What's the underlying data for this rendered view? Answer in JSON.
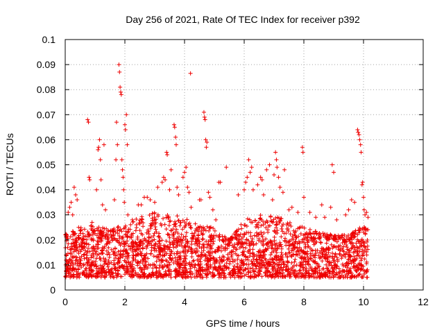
{
  "chart_data": {
    "type": "scatter",
    "title": "Day 256 of 2021, Rate Of TEC Index for receiver p392",
    "xlabel": "GPS time / hours",
    "ylabel": "ROTI / TECUs",
    "xlim": [
      0,
      12
    ],
    "ylim": [
      0,
      0.1
    ],
    "xticks": [
      0,
      2,
      4,
      6,
      8,
      10,
      12
    ],
    "xtick_labels": [
      "0",
      "2",
      "4",
      "6",
      "8",
      "10",
      "12"
    ],
    "yticks": [
      0,
      0.01,
      0.02,
      0.03,
      0.04,
      0.05,
      0.06,
      0.07,
      0.08,
      0.09,
      0.1
    ],
    "ytick_labels": [
      "0",
      "0.01",
      "0.02",
      "0.03",
      "0.04",
      "0.05",
      "0.06",
      "0.07",
      "0.08",
      "0.09",
      "0.1"
    ],
    "grid": true,
    "marker": "+",
    "color": "#ee0000",
    "series": [
      {
        "name": "ROTI",
        "points": [
          [
            0.05,
            0.022
          ],
          [
            0.1,
            0.031
          ],
          [
            0.15,
            0.033
          ],
          [
            0.2,
            0.035
          ],
          [
            0.25,
            0.03
          ],
          [
            0.3,
            0.041
          ],
          [
            0.35,
            0.038
          ],
          [
            0.4,
            0.036
          ],
          [
            0.45,
            0.025
          ],
          [
            0.75,
            0.068
          ],
          [
            0.78,
            0.067
          ],
          [
            0.8,
            0.045
          ],
          [
            0.82,
            0.044
          ],
          [
            0.9,
            0.027
          ],
          [
            1.05,
            0.04
          ],
          [
            1.1,
            0.056
          ],
          [
            1.12,
            0.057
          ],
          [
            1.15,
            0.06
          ],
          [
            1.18,
            0.052
          ],
          [
            1.2,
            0.044
          ],
          [
            1.25,
            0.034
          ],
          [
            1.3,
            0.058
          ],
          [
            1.35,
            0.032
          ],
          [
            1.55,
            0.021
          ],
          [
            1.65,
            0.036
          ],
          [
            1.7,
            0.052
          ],
          [
            1.72,
            0.067
          ],
          [
            1.75,
            0.058
          ],
          [
            1.8,
            0.09
          ],
          [
            1.82,
            0.087
          ],
          [
            1.84,
            0.081
          ],
          [
            1.86,
            0.079
          ],
          [
            1.88,
            0.078
          ],
          [
            1.9,
            0.052
          ],
          [
            1.92,
            0.048
          ],
          [
            1.94,
            0.045
          ],
          [
            1.96,
            0.04
          ],
          [
            1.98,
            0.035
          ],
          [
            2.0,
            0.066
          ],
          [
            2.02,
            0.064
          ],
          [
            2.05,
            0.07
          ],
          [
            2.08,
            0.058
          ],
          [
            2.1,
            0.03
          ],
          [
            2.25,
            0.028
          ],
          [
            2.45,
            0.034
          ],
          [
            2.55,
            0.034
          ],
          [
            2.65,
            0.037
          ],
          [
            2.75,
            0.037
          ],
          [
            2.85,
            0.036
          ],
          [
            3.0,
            0.035
          ],
          [
            3.1,
            0.041
          ],
          [
            3.25,
            0.043
          ],
          [
            3.3,
            0.045
          ],
          [
            3.35,
            0.044
          ],
          [
            3.4,
            0.055
          ],
          [
            3.42,
            0.054
          ],
          [
            3.5,
            0.04
          ],
          [
            3.55,
            0.048
          ],
          [
            3.65,
            0.066
          ],
          [
            3.67,
            0.065
          ],
          [
            3.7,
            0.061
          ],
          [
            3.72,
            0.058
          ],
          [
            3.75,
            0.041
          ],
          [
            3.8,
            0.038
          ],
          [
            3.95,
            0.045
          ],
          [
            4.0,
            0.047
          ],
          [
            4.05,
            0.049
          ],
          [
            4.1,
            0.041
          ],
          [
            4.15,
            0.039
          ],
          [
            4.2,
            0.0865
          ],
          [
            4.22,
            0.033
          ],
          [
            4.45,
            0.025
          ],
          [
            4.5,
            0.036
          ],
          [
            4.55,
            0.036
          ],
          [
            4.65,
            0.071
          ],
          [
            4.67,
            0.069
          ],
          [
            4.69,
            0.068
          ],
          [
            4.71,
            0.06
          ],
          [
            4.73,
            0.057
          ],
          [
            4.75,
            0.059
          ],
          [
            4.8,
            0.039
          ],
          [
            4.85,
            0.037
          ],
          [
            4.95,
            0.032
          ],
          [
            5.05,
            0.028
          ],
          [
            5.15,
            0.043
          ],
          [
            5.2,
            0.043
          ],
          [
            5.4,
            0.049
          ],
          [
            5.6,
            0.021
          ],
          [
            5.7,
            0.021
          ],
          [
            5.8,
            0.038
          ],
          [
            6.0,
            0.04
          ],
          [
            6.05,
            0.043
          ],
          [
            6.1,
            0.045
          ],
          [
            6.15,
            0.052
          ],
          [
            6.2,
            0.047
          ],
          [
            6.25,
            0.049
          ],
          [
            6.3,
            0.04
          ],
          [
            6.45,
            0.042
          ],
          [
            6.55,
            0.045
          ],
          [
            6.6,
            0.044
          ],
          [
            6.65,
            0.038
          ],
          [
            6.75,
            0.048
          ],
          [
            6.85,
            0.05
          ],
          [
            6.95,
            0.036
          ],
          [
            7.0,
            0.046
          ],
          [
            7.05,
            0.055
          ],
          [
            7.08,
            0.052
          ],
          [
            7.1,
            0.049
          ],
          [
            7.15,
            0.045
          ],
          [
            7.2,
            0.041
          ],
          [
            7.3,
            0.039
          ],
          [
            7.35,
            0.048
          ],
          [
            7.5,
            0.032
          ],
          [
            7.6,
            0.033
          ],
          [
            7.8,
            0.031
          ],
          [
            7.95,
            0.057
          ],
          [
            7.97,
            0.055
          ],
          [
            8.0,
            0.037
          ],
          [
            8.2,
            0.031
          ],
          [
            8.4,
            0.029
          ],
          [
            8.6,
            0.034
          ],
          [
            8.7,
            0.029
          ],
          [
            8.9,
            0.033
          ],
          [
            8.95,
            0.05
          ],
          [
            9.0,
            0.047
          ],
          [
            9.1,
            0.028
          ],
          [
            9.4,
            0.03
          ],
          [
            9.5,
            0.032
          ],
          [
            9.6,
            0.036
          ],
          [
            9.7,
            0.035
          ],
          [
            9.8,
            0.064
          ],
          [
            9.82,
            0.063
          ],
          [
            9.85,
            0.062
          ],
          [
            9.87,
            0.06
          ],
          [
            9.9,
            0.058
          ],
          [
            9.92,
            0.055
          ],
          [
            9.95,
            0.042
          ],
          [
            9.97,
            0.043
          ],
          [
            10.0,
            0.037
          ],
          [
            10.02,
            0.032
          ],
          [
            10.05,
            0.03
          ],
          [
            10.1,
            0.031
          ],
          [
            10.15,
            0.029
          ]
        ],
        "dense_band": {
          "x_range": [
            0.0,
            10.15
          ],
          "typical_range": [
            0.005,
            0.02
          ],
          "upper_envelope": [
            [
              0,
              0.023
            ],
            [
              0.5,
              0.025
            ],
            [
              1,
              0.026
            ],
            [
              1.5,
              0.024
            ],
            [
              2,
              0.027
            ],
            [
              2.5,
              0.029
            ],
            [
              3,
              0.031
            ],
            [
              3.5,
              0.031
            ],
            [
              4,
              0.029
            ],
            [
              4.5,
              0.026
            ],
            [
              5,
              0.025
            ],
            [
              5.5,
              0.02
            ],
            [
              6,
              0.028
            ],
            [
              6.5,
              0.03
            ],
            [
              7,
              0.03
            ],
            [
              7.5,
              0.027
            ],
            [
              8,
              0.025
            ],
            [
              8.5,
              0.023
            ],
            [
              9,
              0.022
            ],
            [
              9.5,
              0.022
            ],
            [
              10,
              0.026
            ],
            [
              10.15,
              0.025
            ]
          ]
        }
      }
    ]
  }
}
